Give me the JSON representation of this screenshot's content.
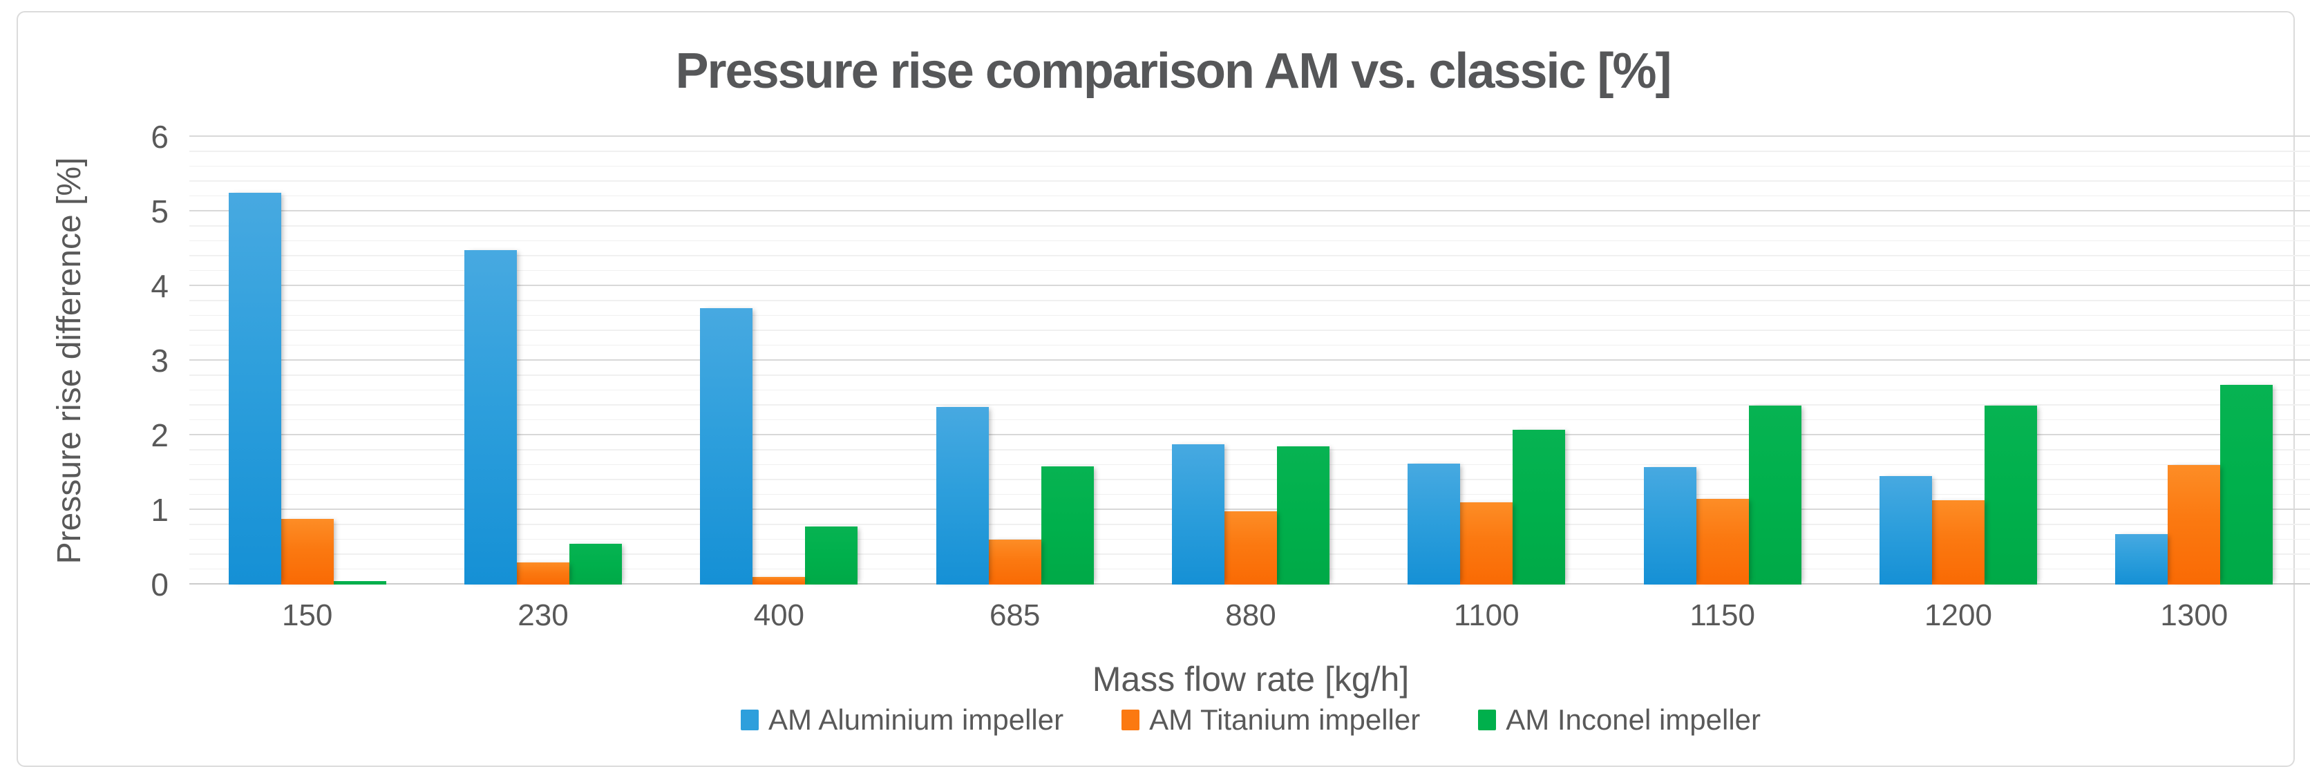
{
  "chart_data": {
    "type": "bar",
    "title": "Pressure rise comparison AM vs. classic [%]",
    "xlabel": "Mass flow rate [kg/h]",
    "ylabel": "Pressure rise difference [%]",
    "ylim": [
      0,
      6
    ],
    "y_major_step": 1,
    "y_minor_step": 0.2,
    "y_tick_labels": [
      "0",
      "1",
      "2",
      "3",
      "4",
      "5",
      "6"
    ],
    "grid": "horizontal major + minor, no vertical grid",
    "legend_position": "bottom-center",
    "categories": [
      "150",
      "230",
      "400",
      "685",
      "880",
      "1100",
      "1150",
      "1200",
      "1300"
    ],
    "series": [
      {
        "name": "AM Aluminium impeller",
        "color": "#2E9FDC",
        "values": [
          5.25,
          4.48,
          3.7,
          2.38,
          1.88,
          1.62,
          1.57,
          1.45,
          0.68
        ]
      },
      {
        "name": "AM Titanium impeller",
        "color": "#FB7911",
        "values": [
          0.88,
          0.3,
          0.1,
          0.6,
          0.98,
          1.1,
          1.15,
          1.13,
          1.6
        ]
      },
      {
        "name": "AM Inconel impeller",
        "color": "#00B04C",
        "values": [
          0.05,
          0.55,
          0.78,
          1.58,
          1.85,
          2.07,
          2.4,
          2.4,
          2.68
        ]
      }
    ]
  },
  "colors": {
    "title_text": "#565759",
    "axis_text": "#595959",
    "major_gridline": "#D8D8D8",
    "minor_gridline": "#F0F0F0",
    "card_border": "#DBDBDB",
    "background": "#FFFFFF"
  }
}
